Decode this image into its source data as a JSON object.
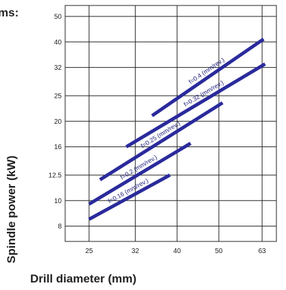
{
  "header_fragment": "ms:",
  "chart_data": {
    "type": "line",
    "title": "",
    "xlabel": "Drill diameter (mm)",
    "ylabel": "Spindle power (kW)",
    "x_scale": "log",
    "y_scale": "log",
    "xlim": [
      22,
      68
    ],
    "ylim": [
      7,
      55
    ],
    "xticks": [
      "25",
      "32",
      "40",
      "50",
      "63"
    ],
    "yticks": [
      "8",
      "10",
      "12.5",
      "16",
      "20",
      "25",
      "32",
      "40",
      "50"
    ],
    "grid": true,
    "line_color": "#2a2a9c",
    "series": [
      {
        "name": "f=0.4 (mm/rev.)",
        "x": [
          35,
          63.5
        ],
        "y": [
          21,
          41
        ]
      },
      {
        "name": "f=0.32 (mm/rev.)",
        "x": [
          30.5,
          64
        ],
        "y": [
          16,
          33
        ]
      },
      {
        "name": "f=0.25 (mm/rev.)",
        "x": [
          26.5,
          51
        ],
        "y": [
          12,
          23.5
        ]
      },
      {
        "name": "f=0.2 (mm/rev.)",
        "x": [
          25,
          43
        ],
        "y": [
          9.7,
          16.5
        ]
      },
      {
        "name": "f=0.16 (mm/rev.)",
        "x": [
          25,
          38.5
        ],
        "y": [
          8.5,
          12.5
        ]
      }
    ]
  }
}
